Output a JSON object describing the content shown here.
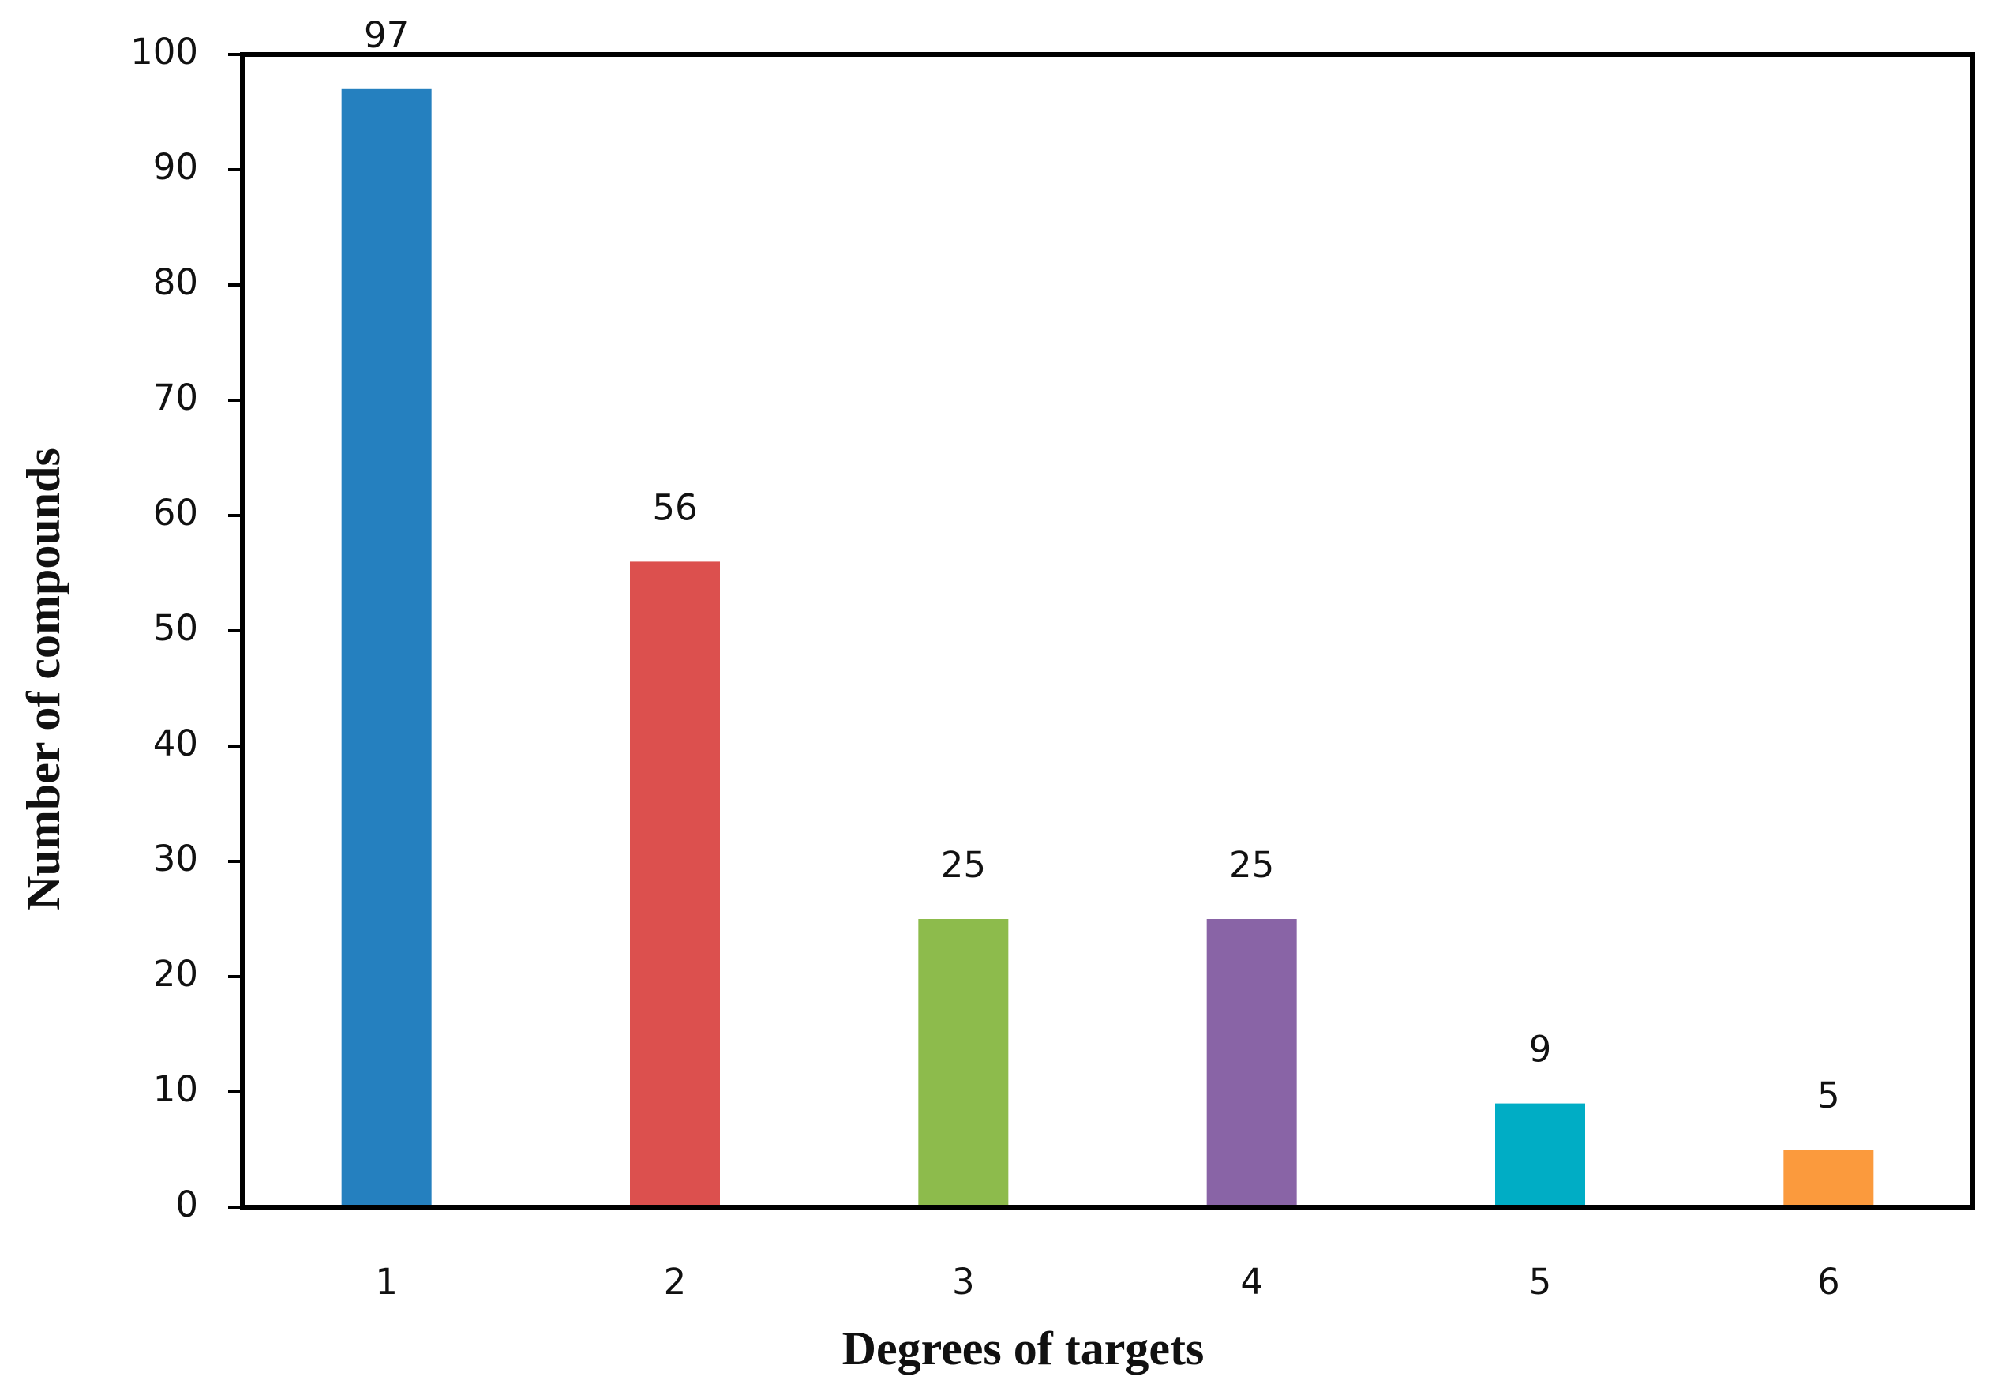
{
  "chart_data": {
    "type": "bar",
    "x_label": "Degrees of targets",
    "y_label": "Number of compounds",
    "categories": [
      "1",
      "2",
      "3",
      "4",
      "5",
      "6"
    ],
    "values": [
      97,
      56,
      25,
      25,
      9,
      5
    ],
    "colors": [
      "#2580bf",
      "#dc504e",
      "#8dbb4c",
      "#8964a6",
      "#00adc5",
      "#fb9a3d"
    ],
    "ylim": [
      0,
      100
    ],
    "yticks": [
      0,
      10,
      20,
      30,
      40,
      50,
      60,
      70,
      80,
      90,
      100
    ],
    "grid": false
  }
}
